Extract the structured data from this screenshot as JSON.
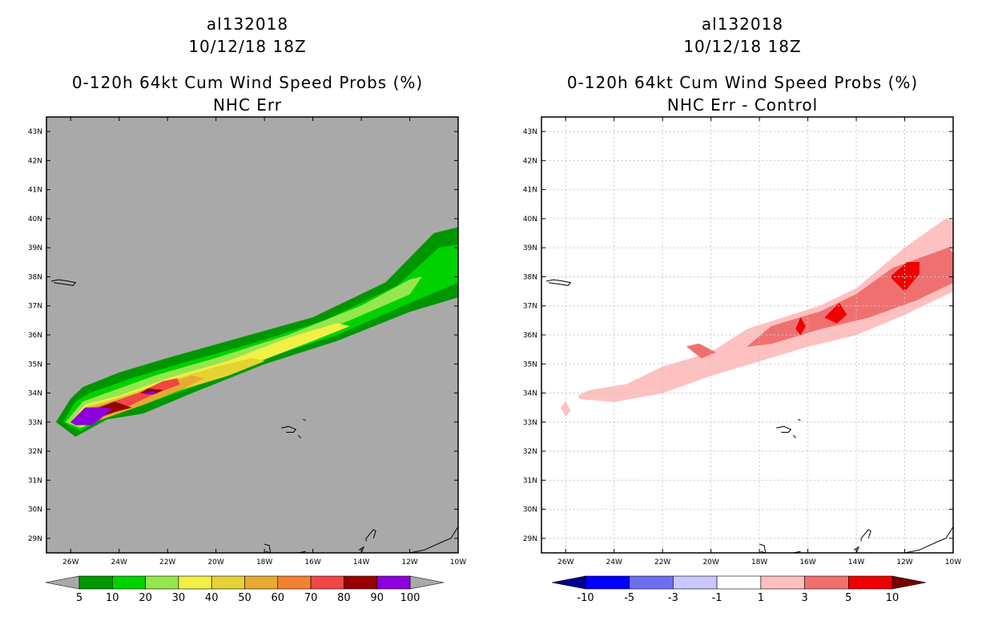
{
  "panels": [
    {
      "storm_id": "al132018",
      "datetime": "10/12/18 18Z",
      "title": "0-120h 64kt Cum Wind Speed Probs (%)",
      "subtitle": "NHC Err",
      "background_color": "#a9a9a9",
      "colorbar": {
        "colors": [
          "#009600",
          "#00d200",
          "#96e650",
          "#f0f046",
          "#e6d232",
          "#e6aa32",
          "#f08232",
          "#f04646",
          "#960000",
          "#8c00dc"
        ],
        "labels": [
          "5",
          "10",
          "20",
          "30",
          "40",
          "50",
          "60",
          "70",
          "80",
          "90",
          "100"
        ],
        "end_colors": [
          "#a9a9a9",
          "#a9a9a9"
        ]
      }
    },
    {
      "storm_id": "al132018",
      "datetime": "10/12/18 18Z",
      "title": "0-120h 64kt Cum Wind Speed Probs (%)",
      "subtitle": "NHC Err - Control",
      "background_color": "#ffffff",
      "colorbar": {
        "colors": [
          "#0000ff",
          "#6e6ef0",
          "#c8c8ff",
          "#ffffff",
          "#ffc0c0",
          "#f07070",
          "#f00000"
        ],
        "labels": [
          "-10",
          "-5",
          "-3",
          "-1",
          "1",
          "3",
          "5",
          "10"
        ],
        "end_colors": [
          "#00008c",
          "#780000"
        ]
      }
    }
  ],
  "map": {
    "lat_range": [
      28.5,
      43.5
    ],
    "lon_range": [
      -27,
      -10
    ],
    "lat_ticks": [
      "29N",
      "30N",
      "31N",
      "32N",
      "33N",
      "34N",
      "35N",
      "36N",
      "37N",
      "38N",
      "39N",
      "40N",
      "41N",
      "42N",
      "43N"
    ],
    "lon_ticks": [
      "26W",
      "24W",
      "22W",
      "20W",
      "18W",
      "16W",
      "14W",
      "12W",
      "10W"
    ]
  },
  "chart_data": [
    {
      "type": "filled-contour",
      "title": "0-120h 64kt Cum Wind Speed Probs (%)",
      "subtitle": "NHC Err",
      "levels": [
        5,
        10,
        20,
        30,
        40,
        50,
        60,
        70,
        80,
        90,
        100
      ],
      "xlim": [
        -27,
        -10
      ],
      "ylim": [
        28.5,
        43.5
      ],
      "layers": [
        {
          "level": 5,
          "color": "#009600",
          "polygon": [
            [
              -26.6,
              33.0
            ],
            [
              -26.0,
              33.8
            ],
            [
              -25.5,
              34.2
            ],
            [
              -24.0,
              34.7
            ],
            [
              -22.0,
              35.2
            ],
            [
              -19.0,
              35.9
            ],
            [
              -16.0,
              36.6
            ],
            [
              -13.0,
              37.8
            ],
            [
              -11.0,
              39.5
            ],
            [
              -10.0,
              39.7
            ],
            [
              -10.0,
              37.3
            ],
            [
              -12.0,
              36.8
            ],
            [
              -15.0,
              35.8
            ],
            [
              -18.0,
              35.0
            ],
            [
              -21.0,
              34.0
            ],
            [
              -23.0,
              33.3
            ],
            [
              -24.5,
              33.1
            ],
            [
              -25.8,
              32.5
            ]
          ]
        },
        {
          "level": 10,
          "color": "#00d200",
          "polygon": [
            [
              -26.3,
              33.0
            ],
            [
              -25.8,
              33.7
            ],
            [
              -25.2,
              34.0
            ],
            [
              -23.5,
              34.5
            ],
            [
              -21.5,
              35.0
            ],
            [
              -18.5,
              35.7
            ],
            [
              -15.5,
              36.5
            ],
            [
              -12.5,
              37.7
            ],
            [
              -10.8,
              39.0
            ],
            [
              -10.0,
              39.1
            ],
            [
              -10.0,
              37.8
            ],
            [
              -12.0,
              37.1
            ],
            [
              -15.0,
              36.0
            ],
            [
              -18.0,
              35.2
            ],
            [
              -21.0,
              34.2
            ],
            [
              -23.0,
              33.6
            ],
            [
              -24.5,
              33.2
            ],
            [
              -25.6,
              32.7
            ]
          ]
        },
        {
          "level": 20,
          "color": "#96e650",
          "polygon": [
            [
              -26.2,
              33.0
            ],
            [
              -25.5,
              33.7
            ],
            [
              -24.5,
              34.0
            ],
            [
              -22.5,
              34.6
            ],
            [
              -20.0,
              35.2
            ],
            [
              -17.0,
              36.0
            ],
            [
              -14.0,
              37.0
            ],
            [
              -12.0,
              37.9
            ],
            [
              -11.5,
              38.0
            ],
            [
              -12.0,
              37.4
            ],
            [
              -14.5,
              36.5
            ],
            [
              -17.5,
              35.5
            ],
            [
              -20.5,
              34.6
            ],
            [
              -23.0,
              33.7
            ],
            [
              -24.8,
              33.1
            ],
            [
              -25.6,
              32.8
            ]
          ]
        },
        {
          "level": 30,
          "color": "#f0f046",
          "polygon": [
            [
              -26.0,
              33.0
            ],
            [
              -25.4,
              33.6
            ],
            [
              -24.0,
              33.9
            ],
            [
              -22.0,
              34.5
            ],
            [
              -19.5,
              35.1
            ],
            [
              -17.0,
              35.9
            ],
            [
              -15.0,
              36.4
            ],
            [
              -14.5,
              36.3
            ],
            [
              -16.0,
              35.8
            ],
            [
              -18.5,
              35.0
            ],
            [
              -21.0,
              34.3
            ],
            [
              -23.5,
              33.6
            ],
            [
              -25.0,
              33.1
            ],
            [
              -25.5,
              32.85
            ]
          ]
        },
        {
          "level": 40,
          "color": "#e6d232",
          "polygon": [
            [
              -25.9,
              33.0
            ],
            [
              -25.3,
              33.55
            ],
            [
              -24.0,
              33.85
            ],
            [
              -22.0,
              34.4
            ],
            [
              -20.0,
              34.9
            ],
            [
              -18.5,
              35.2
            ],
            [
              -18.0,
              35.1
            ],
            [
              -19.5,
              34.6
            ],
            [
              -21.5,
              34.1
            ],
            [
              -23.5,
              33.55
            ],
            [
              -25.0,
              33.05
            ],
            [
              -25.5,
              32.9
            ]
          ]
        },
        {
          "level": 50,
          "color": "#e6aa32",
          "polygon": [
            [
              -25.8,
              33.0
            ],
            [
              -25.2,
              33.5
            ],
            [
              -24.0,
              33.8
            ],
            [
              -22.5,
              34.2
            ],
            [
              -21.0,
              34.6
            ],
            [
              -20.5,
              34.5
            ],
            [
              -21.5,
              34.1
            ],
            [
              -23.0,
              33.6
            ],
            [
              -24.7,
              33.1
            ],
            [
              -25.4,
              32.95
            ]
          ]
        },
        {
          "level": 60,
          "color": "#f08232",
          "polygon": [
            [
              -25.7,
              33.0
            ],
            [
              -25.2,
              33.45
            ],
            [
              -24.0,
              33.75
            ],
            [
              -23.0,
              34.05
            ],
            [
              -21.8,
              34.4
            ],
            [
              -21.6,
              34.3
            ],
            [
              -22.8,
              33.9
            ],
            [
              -24.3,
              33.35
            ],
            [
              -25.3,
              33.0
            ]
          ]
        },
        {
          "level": 70,
          "color": "#f04646",
          "polygon": [
            [
              -25.6,
              33.0
            ],
            [
              -25.2,
              33.4
            ],
            [
              -24.2,
              33.7
            ],
            [
              -23.2,
              34.0
            ],
            [
              -22.2,
              34.4
            ],
            [
              -21.6,
              34.5
            ],
            [
              -21.5,
              34.3
            ],
            [
              -22.6,
              33.95
            ],
            [
              -24.0,
              33.4
            ],
            [
              -25.2,
              33.05
            ]
          ]
        },
        {
          "level": 80,
          "color": "#960000",
          "polygon": [
            [
              -25.5,
              33.0
            ],
            [
              -25.1,
              33.4
            ],
            [
              -24.2,
              33.7
            ],
            [
              -23.5,
              33.5
            ],
            [
              -24.2,
              33.35
            ],
            [
              -25.0,
              33.1
            ]
          ]
        },
        {
          "level": 80,
          "color": "#960000",
          "polygon": [
            [
              -23.1,
              34.0
            ],
            [
              -22.8,
              34.15
            ],
            [
              -22.2,
              34.1
            ],
            [
              -22.6,
              33.95
            ]
          ]
        },
        {
          "level": 90,
          "color": "#8c00dc",
          "polygon": [
            [
              -26.0,
              33.0
            ],
            [
              -25.4,
              33.5
            ],
            [
              -24.7,
              33.5
            ],
            [
              -24.3,
              33.45
            ],
            [
              -24.8,
              33.1
            ],
            [
              -25.1,
              32.9
            ],
            [
              -25.8,
              32.9
            ]
          ]
        },
        {
          "level": 90,
          "color": "#8c00dc",
          "polygon": [
            [
              -23.0,
              34.0
            ],
            [
              -22.6,
              34.05
            ],
            [
              -22.4,
              34.0
            ],
            [
              -22.8,
              33.95
            ]
          ]
        }
      ]
    },
    {
      "type": "filled-contour",
      "title": "0-120h 64kt Cum Wind Speed Probs (%)",
      "subtitle": "NHC Err - Control",
      "levels": [
        -10,
        -5,
        -3,
        -1,
        1,
        3,
        5,
        10
      ],
      "xlim": [
        -27,
        -10
      ],
      "ylim": [
        28.5,
        43.5
      ],
      "layers": [
        {
          "level": 1,
          "color": "#ffc0c0",
          "polygon": [
            [
              -26.2,
              33.5
            ],
            [
              -26.0,
              33.7
            ],
            [
              -25.8,
              33.4
            ],
            [
              -26.0,
              33.2
            ]
          ]
        },
        {
          "level": 1,
          "color": "#ffc0c0",
          "polygon": [
            [
              -25.5,
              33.9
            ],
            [
              -25.0,
              34.1
            ],
            [
              -23.5,
              34.3
            ],
            [
              -22.0,
              34.9
            ],
            [
              -20.0,
              35.4
            ],
            [
              -18.5,
              36.2
            ],
            [
              -17.0,
              36.6
            ],
            [
              -15.5,
              37.0
            ],
            [
              -14.0,
              37.6
            ],
            [
              -12.0,
              39.0
            ],
            [
              -10.3,
              40.0
            ],
            [
              -10.0,
              39.9
            ],
            [
              -10.0,
              37.5
            ],
            [
              -12.0,
              36.7
            ],
            [
              -14.0,
              36.0
            ],
            [
              -16.0,
              35.6
            ],
            [
              -18.0,
              35.1
            ],
            [
              -20.0,
              34.6
            ],
            [
              -22.0,
              34.0
            ],
            [
              -24.0,
              33.7
            ],
            [
              -25.4,
              33.8
            ]
          ]
        },
        {
          "level": 3,
          "color": "#f07070",
          "polygon": [
            [
              -21.0,
              35.6
            ],
            [
              -20.5,
              35.7
            ],
            [
              -19.8,
              35.4
            ],
            [
              -20.4,
              35.2
            ]
          ]
        },
        {
          "level": 3,
          "color": "#f07070",
          "polygon": [
            [
              -18.5,
              35.6
            ],
            [
              -17.5,
              36.3
            ],
            [
              -15.5,
              36.8
            ],
            [
              -14.0,
              37.4
            ],
            [
              -12.5,
              38.3
            ],
            [
              -10.2,
              39.0
            ],
            [
              -10.0,
              38.8
            ],
            [
              -10.0,
              37.8
            ],
            [
              -11.5,
              37.2
            ],
            [
              -13.5,
              36.6
            ],
            [
              -15.5,
              36.2
            ],
            [
              -17.5,
              35.7
            ]
          ]
        },
        {
          "level": 5,
          "color": "#f00000",
          "polygon": [
            [
              -16.5,
              36.2
            ],
            [
              -16.3,
              36.6
            ],
            [
              -16.1,
              36.3
            ],
            [
              -16.3,
              36.0
            ]
          ]
        },
        {
          "level": 5,
          "color": "#f00000",
          "polygon": [
            [
              -15.3,
              36.6
            ],
            [
              -14.7,
              37.1
            ],
            [
              -14.4,
              36.7
            ],
            [
              -14.8,
              36.4
            ]
          ]
        },
        {
          "level": 5,
          "color": "#f00000",
          "polygon": [
            [
              -12.6,
              38.0
            ],
            [
              -11.9,
              38.5
            ],
            [
              -11.4,
              38.5
            ],
            [
              -11.4,
              38.1
            ],
            [
              -12.0,
              37.5
            ]
          ]
        }
      ]
    }
  ]
}
